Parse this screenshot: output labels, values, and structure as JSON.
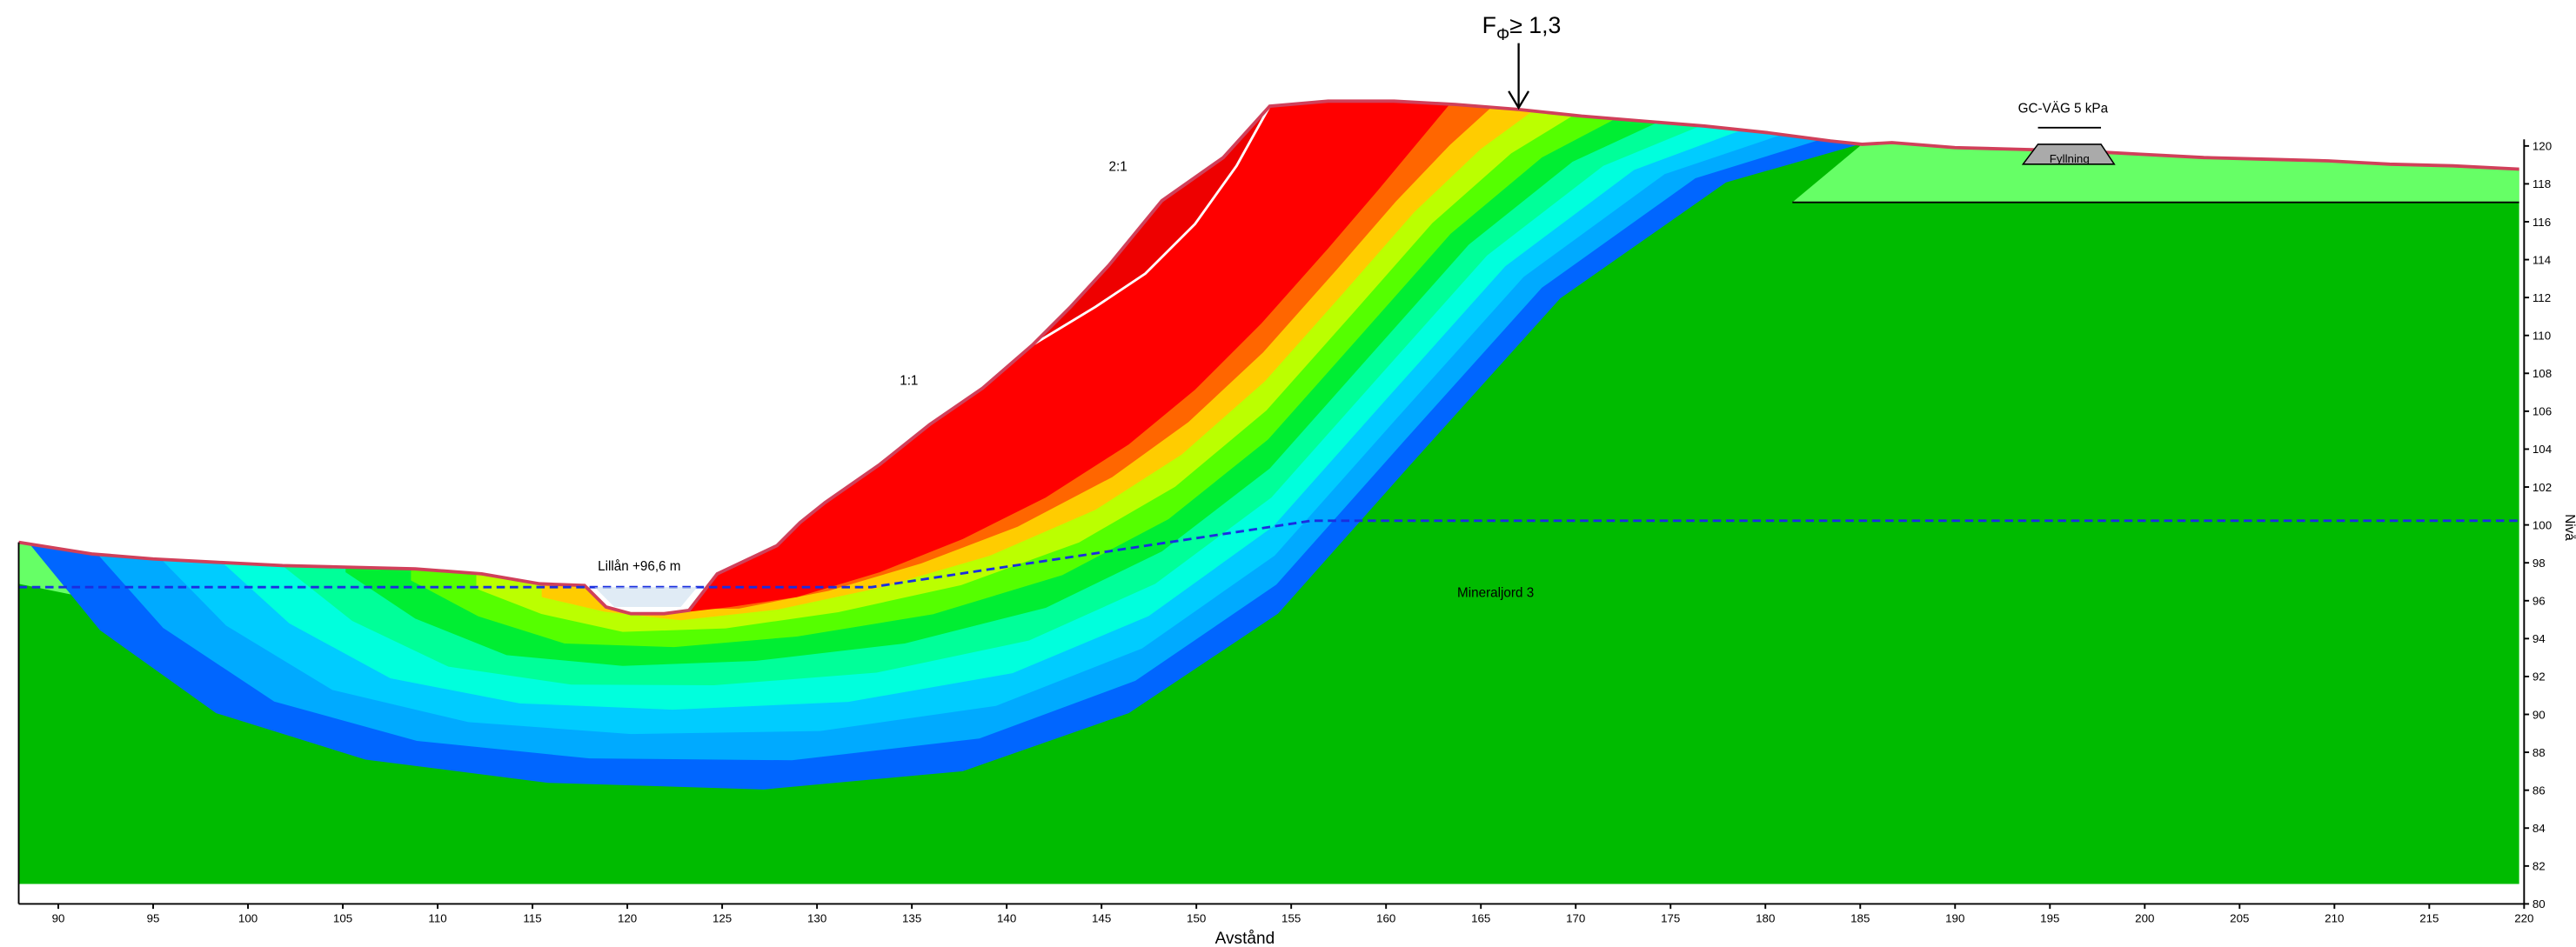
{
  "axes": {
    "xlabel": "Avstånd",
    "ylabel": "Nivå",
    "xlim": [
      88,
      220
    ],
    "ylim": [
      80,
      120
    ],
    "xticks": [
      90,
      95,
      100,
      105,
      110,
      115,
      120,
      125,
      130,
      135,
      140,
      145,
      150,
      155,
      160,
      165,
      170,
      175,
      180,
      185,
      190,
      195,
      200,
      205,
      210,
      215,
      220
    ],
    "yticks": [
      80,
      82,
      84,
      86,
      88,
      90,
      92,
      94,
      96,
      98,
      100,
      102,
      104,
      106,
      108,
      110,
      112,
      114,
      116,
      118,
      120
    ]
  },
  "annotations": {
    "safety_factor": {
      "symbol": "F",
      "subscript": "Φ",
      "condition": "≥ 1,3"
    },
    "slope_upper": "2:1",
    "slope_lower": "1:1",
    "water_level": "Lillån +96,6 m",
    "load": "GC-VÄG 5 kPa",
    "fill": "Fyllning",
    "soil": "Mineraljord 3"
  }
}
